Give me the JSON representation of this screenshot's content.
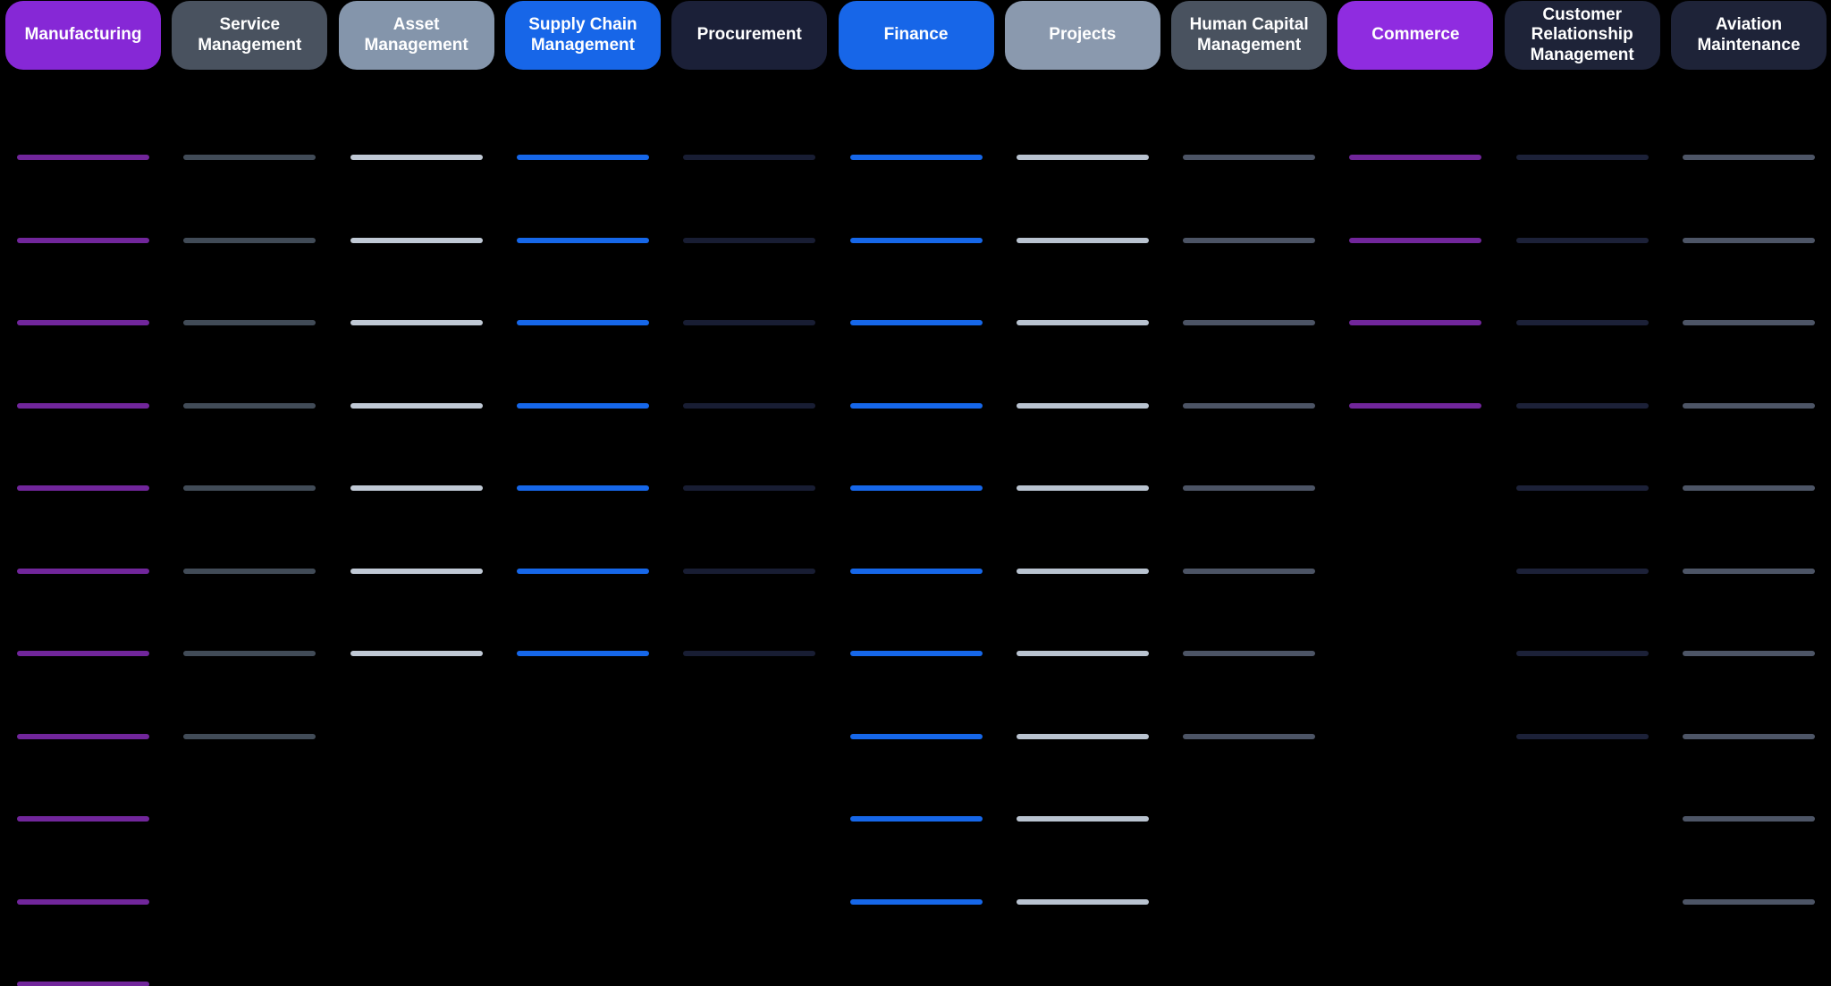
{
  "board": {
    "background_color": "#000000",
    "pill_text_color": "#ffffff",
    "columns": [
      {
        "label": "Manufacturing",
        "pill_color": "#8628d6",
        "line_color": "#71269b",
        "item_count": 11
      },
      {
        "label": "Service Management",
        "pill_color": "#49525f",
        "line_color": "#414b57",
        "item_count": 8
      },
      {
        "label": "Asset Management",
        "pill_color": "#8495ab",
        "line_color": "#c0c9d5",
        "item_count": 7
      },
      {
        "label": "Supply Chain Management",
        "pill_color": "#1766e8",
        "line_color": "#1667e9",
        "item_count": 7
      },
      {
        "label": "Procurement",
        "pill_color": "#1b2038",
        "line_color": "#181d33",
        "item_count": 7
      },
      {
        "label": "Finance",
        "pill_color": "#1766e8",
        "line_color": "#1667e9",
        "item_count": 10
      },
      {
        "label": "Projects",
        "pill_color": "#8a99ae",
        "line_color": "#b9c3d0",
        "item_count": 10
      },
      {
        "label": "Human Capital Management",
        "pill_color": "#49525f",
        "line_color": "#4c5465",
        "item_count": 8
      },
      {
        "label": "Commerce",
        "pill_color": "#8f2ce0",
        "line_color": "#71269b",
        "item_count": 4
      },
      {
        "label": "Customer Relationship Management",
        "pill_color": "#1e2338",
        "line_color": "#1c2138",
        "item_count": 8
      },
      {
        "label": "Aviation Maintenance",
        "pill_color": "#1e2338",
        "line_color": "#4d5566",
        "item_count": 10
      }
    ]
  }
}
